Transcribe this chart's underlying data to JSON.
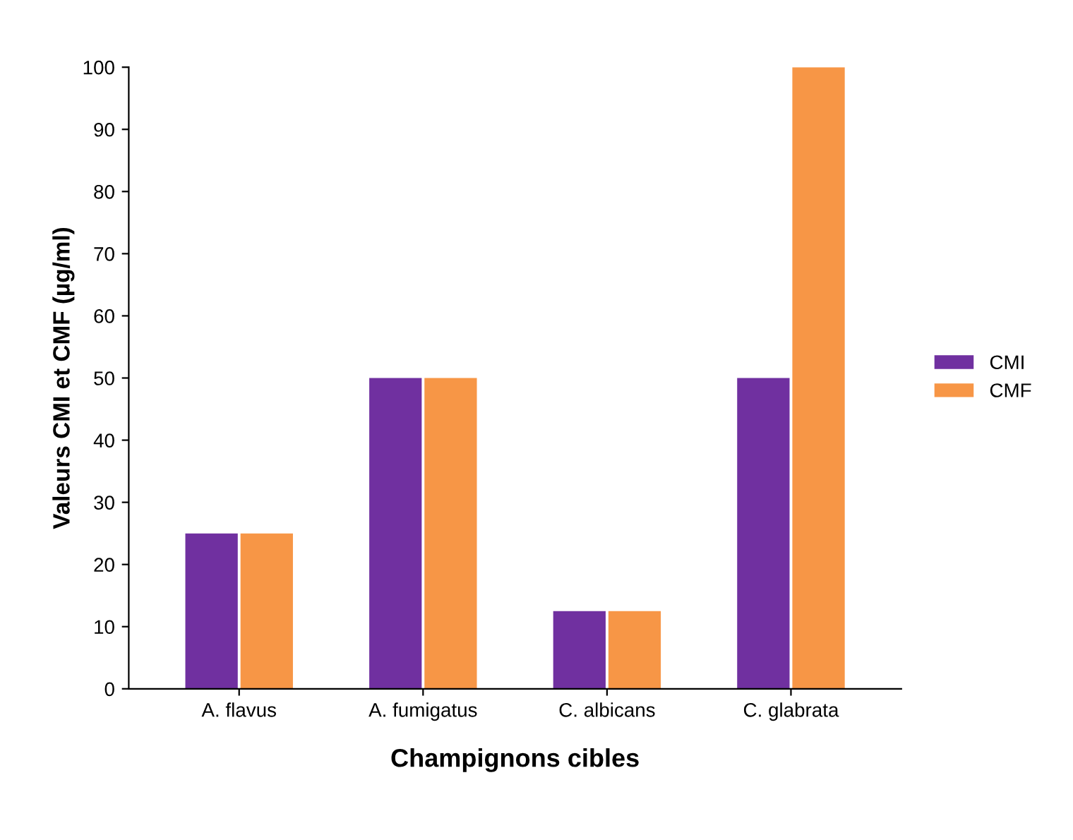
{
  "chart_data": {
    "type": "bar",
    "xlabel": "Champignons cibles",
    "ylabel": "Valeurs CMI et CMF (µg/ml)",
    "categories": [
      "A. flavus",
      "A. fumigatus",
      "C. albicans",
      "C. glabrata"
    ],
    "series": [
      {
        "name": "CMI",
        "color": "#7030a0",
        "values": [
          25,
          50,
          12.5,
          50
        ]
      },
      {
        "name": "CMF",
        "color": "#f79646",
        "values": [
          25,
          50,
          12.5,
          100
        ]
      }
    ],
    "ylim": [
      0,
      100
    ],
    "yticks": [
      0,
      10,
      20,
      30,
      40,
      50,
      60,
      70,
      80,
      90,
      100
    ],
    "grid": false,
    "legend": "right"
  }
}
